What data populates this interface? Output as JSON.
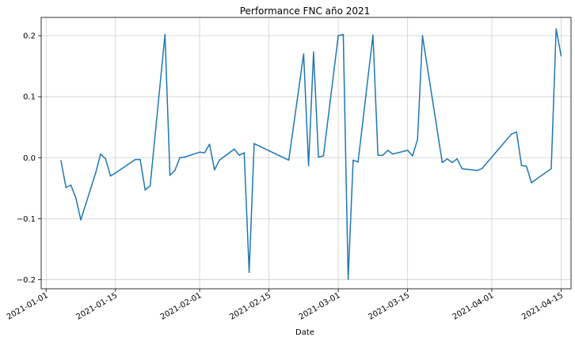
{
  "chart_data": {
    "type": "line",
    "title": "Performance FNC año 2021",
    "xlabel": "Date",
    "ylabel": "",
    "x_type": "date",
    "xlim": [
      "2020-12-31",
      "2021-04-17"
    ],
    "ylim": [
      -0.215,
      0.23
    ],
    "x_ticks": [
      "2021-01-01",
      "2021-01-15",
      "2021-02-01",
      "2021-02-15",
      "2021-03-01",
      "2021-03-15",
      "2021-04-01",
      "2021-04-15"
    ],
    "y_ticks": [
      -0.2,
      -0.1,
      0.0,
      0.1,
      0.2
    ],
    "y_tick_labels": [
      "−0.2",
      "−0.1",
      "0.0",
      "0.1",
      "0.2"
    ],
    "grid": true,
    "color": "#1f77b4",
    "series": [
      {
        "x": [
          "2021-01-04",
          "2021-01-05",
          "2021-01-06",
          "2021-01-07",
          "2021-01-08",
          "2021-01-11",
          "2021-01-12",
          "2021-01-13",
          "2021-01-14",
          "2021-01-15",
          "2021-01-19",
          "2021-01-20",
          "2021-01-21",
          "2021-01-22",
          "2021-01-25",
          "2021-01-26",
          "2021-01-27",
          "2021-01-28",
          "2021-01-29",
          "2021-02-01",
          "2021-02-02",
          "2021-02-03",
          "2021-02-04",
          "2021-02-05",
          "2021-02-08",
          "2021-02-09",
          "2021-02-10",
          "2021-02-11",
          "2021-02-12",
          "2021-02-19",
          "2021-02-22",
          "2021-02-23",
          "2021-02-24",
          "2021-02-25",
          "2021-02-26",
          "2021-03-01",
          "2021-03-02",
          "2021-03-03",
          "2021-03-04",
          "2021-03-05",
          "2021-03-08",
          "2021-03-09",
          "2021-03-10",
          "2021-03-11",
          "2021-03-12",
          "2021-03-15",
          "2021-03-16",
          "2021-03-17",
          "2021-03-18",
          "2021-03-22",
          "2021-03-23",
          "2021-03-24",
          "2021-03-25",
          "2021-03-26",
          "2021-03-29",
          "2021-03-30",
          "2021-04-05",
          "2021-04-06",
          "2021-04-07",
          "2021-04-08",
          "2021-04-09",
          "2021-04-13",
          "2021-04-14",
          "2021-04-15"
        ],
        "y": [
          -0.005,
          -0.049,
          -0.045,
          -0.066,
          -0.102,
          -0.025,
          0.006,
          -0.002,
          -0.03,
          -0.025,
          -0.003,
          -0.003,
          -0.053,
          -0.046,
          0.202,
          -0.029,
          -0.021,
          0.0,
          0.001,
          0.009,
          0.008,
          0.022,
          -0.02,
          -0.004,
          0.014,
          0.004,
          0.008,
          -0.188,
          0.023,
          -0.004,
          0.17,
          -0.013,
          0.173,
          0.001,
          0.003,
          0.2,
          0.202,
          -0.199,
          -0.004,
          -0.007,
          0.201,
          0.004,
          0.004,
          0.012,
          0.006,
          0.012,
          0.003,
          0.03,
          0.2,
          -0.008,
          -0.002,
          -0.008,
          -0.002,
          -0.018,
          -0.021,
          -0.018,
          0.039,
          0.042,
          -0.013,
          -0.014,
          -0.041,
          -0.018,
          0.211,
          0.167
        ]
      }
    ]
  }
}
